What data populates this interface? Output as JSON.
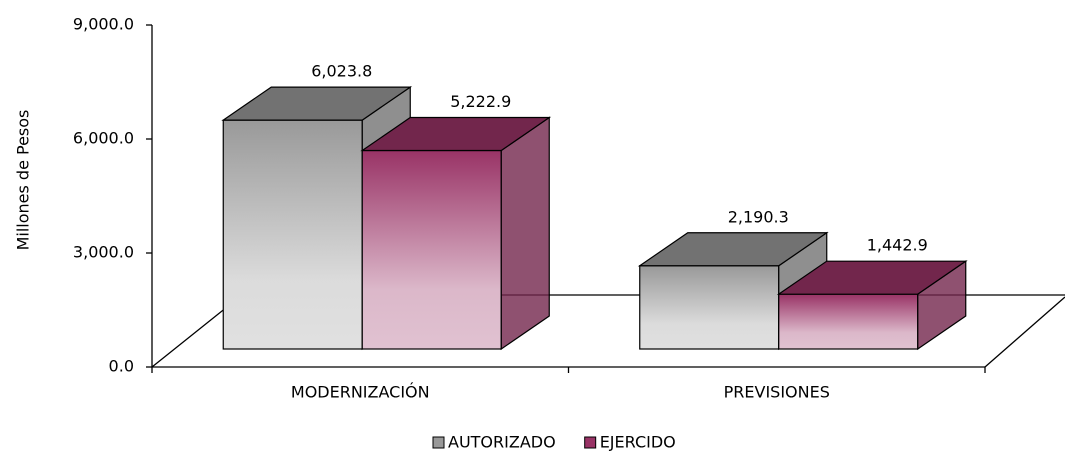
{
  "chart_data": {
    "type": "bar3d",
    "y_axis_label": "Millones de Pesos",
    "categories": [
      "MODERNIZACIÓN",
      "PREVISIONES"
    ],
    "series": [
      {
        "name": "AUTORIZADO",
        "color": "#999999",
        "values": [
          6023.8,
          2190.3
        ],
        "value_labels": [
          "6,023.8",
          "2,190.3"
        ]
      },
      {
        "name": "EJERCIDO",
        "color": "#993366",
        "values": [
          5222.9,
          1442.9
        ],
        "value_labels": [
          "5,222.9",
          "1,442.9"
        ]
      }
    ],
    "ylim": [
      0,
      9000
    ],
    "yticks": [
      {
        "value": 0,
        "label": "0.0"
      },
      {
        "value": 3000,
        "label": "3,000.0"
      },
      {
        "value": 6000,
        "label": "6,000.0"
      },
      {
        "value": 9000,
        "label": "9,000.0"
      }
    ],
    "legend": "bottom"
  }
}
